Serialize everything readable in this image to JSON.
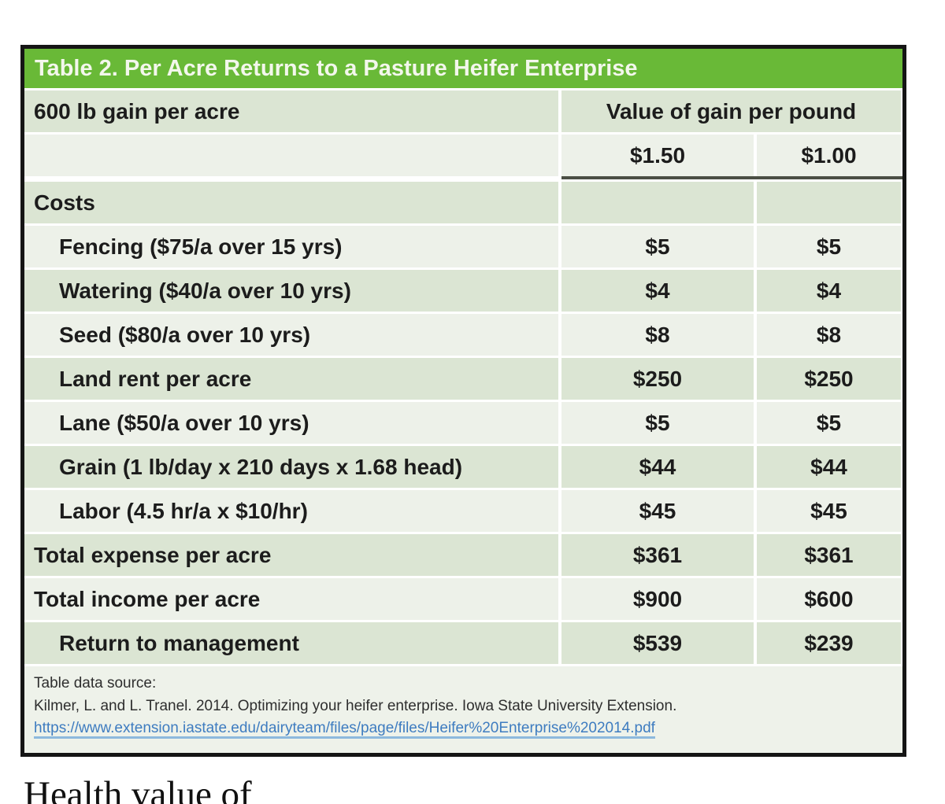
{
  "table": {
    "title": "Table 2. Per Acre Returns to a Pasture Heifer Enterprise",
    "header": {
      "row_label": "600 lb gain per acre",
      "group_label": "Value of gain per pound",
      "col1": "$1.50",
      "col2": "$1.00"
    },
    "rows": [
      {
        "label": "Costs",
        "v1": "",
        "v2": ""
      },
      {
        "label": "Fencing ($75/a over 15 yrs)",
        "v1": "$5",
        "v2": "$5"
      },
      {
        "label": "Watering ($40/a over 10 yrs)",
        "v1": "$4",
        "v2": "$4"
      },
      {
        "label": "Seed ($80/a over 10 yrs)",
        "v1": "$8",
        "v2": "$8"
      },
      {
        "label": "Land rent per acre",
        "v1": "$250",
        "v2": "$250"
      },
      {
        "label": "Lane ($50/a over 10 yrs)",
        "v1": "$5",
        "v2": "$5"
      },
      {
        "label": "Grain (1 lb/day x 210 days x 1.68 head)",
        "v1": "$44",
        "v2": "$44"
      },
      {
        "label": "Labor (4.5 hr/a x $10/hr)",
        "v1": "$45",
        "v2": "$45"
      },
      {
        "label": "Total expense per acre",
        "v1": "$361",
        "v2": "$361"
      },
      {
        "label": "Total income per acre",
        "v1": "$900",
        "v2": "$600"
      },
      {
        "label": "Return to management",
        "v1": "$539",
        "v2": "$239"
      }
    ],
    "source": {
      "prefix": "Table data source:",
      "citation": "Kilmer, L. and L. Tranel. 2014. Optimizing your heifer enterprise. Iowa State University Extension.",
      "link_text": "https://www.extension.iastate.edu/dairyteam/files/page/files/Heifer%20Enterprise%202014.pdf",
      "link_url": "https://www.extension.iastate.edu/dairyteam/files/page/files/Heifer%20Enterprise%202014.pdf"
    }
  },
  "below_text": "Health value of",
  "colors": {
    "header_green": "#69b937",
    "row_medium": "#dbe5d3",
    "row_light": "#edf1e9",
    "rule_dark": "#4b4f44",
    "link_blue": "#3e7cc0",
    "border_black": "#151515"
  }
}
